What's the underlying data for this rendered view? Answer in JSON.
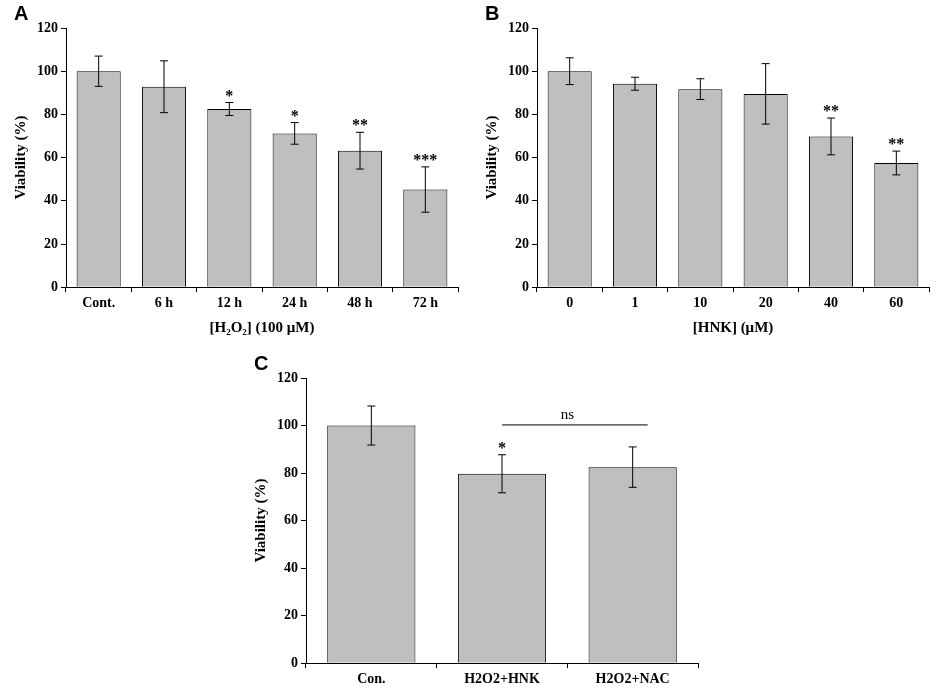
{
  "chart_data": [
    {
      "type": "bar",
      "title": "A",
      "categories": [
        "Cont.",
        "6 h",
        "12 h",
        "24 h",
        "48 h",
        "72 h"
      ],
      "values": [
        100,
        92.8,
        82.5,
        71.2,
        63.2,
        45.2
      ],
      "errors": [
        7,
        12,
        3,
        5,
        8.5,
        10.5
      ],
      "stars": [
        null,
        null,
        "*",
        "*",
        "**",
        "***"
      ],
      "x_label": "[H₂O₂] (100 μM)",
      "y_label": "Viability (%)",
      "ylim": [
        0,
        120
      ],
      "yticks": [
        0,
        20,
        40,
        60,
        80,
        100,
        120
      ],
      "color": "#bfbfbf",
      "grid": false
    },
    {
      "type": "bar",
      "title": "B",
      "categories": [
        "0",
        "1",
        "10",
        "20",
        "40",
        "60"
      ],
      "values": [
        100,
        94.2,
        91.7,
        89.5,
        69.8,
        57.5
      ],
      "errors": [
        6.2,
        3,
        4.8,
        14,
        8.5,
        5.5
      ],
      "stars": [
        null,
        null,
        null,
        null,
        "**",
        "**"
      ],
      "x_label": "[HNK] (μM)",
      "y_label": "Viability (%)",
      "ylim": [
        0,
        120
      ],
      "yticks": [
        0,
        20,
        40,
        60,
        80,
        100,
        120
      ],
      "color": "#bfbfbf",
      "grid": false
    },
    {
      "type": "bar",
      "title": "C",
      "categories": [
        "Con.",
        "H2O2+HNK",
        "H2O2+NAC"
      ],
      "values": [
        100,
        79.7,
        82.5
      ],
      "errors": [
        8.2,
        8,
        8.5
      ],
      "stars": [
        null,
        "*",
        null
      ],
      "bracket": {
        "between": [
          "H2O2+HNK",
          "H2O2+NAC"
        ],
        "label": "ns"
      },
      "y_label": "Viability (%)",
      "ylim": [
        0,
        120
      ],
      "yticks": [
        0,
        20,
        40,
        60,
        80,
        100,
        120
      ],
      "color": "#bfbfbf",
      "grid": false
    }
  ]
}
